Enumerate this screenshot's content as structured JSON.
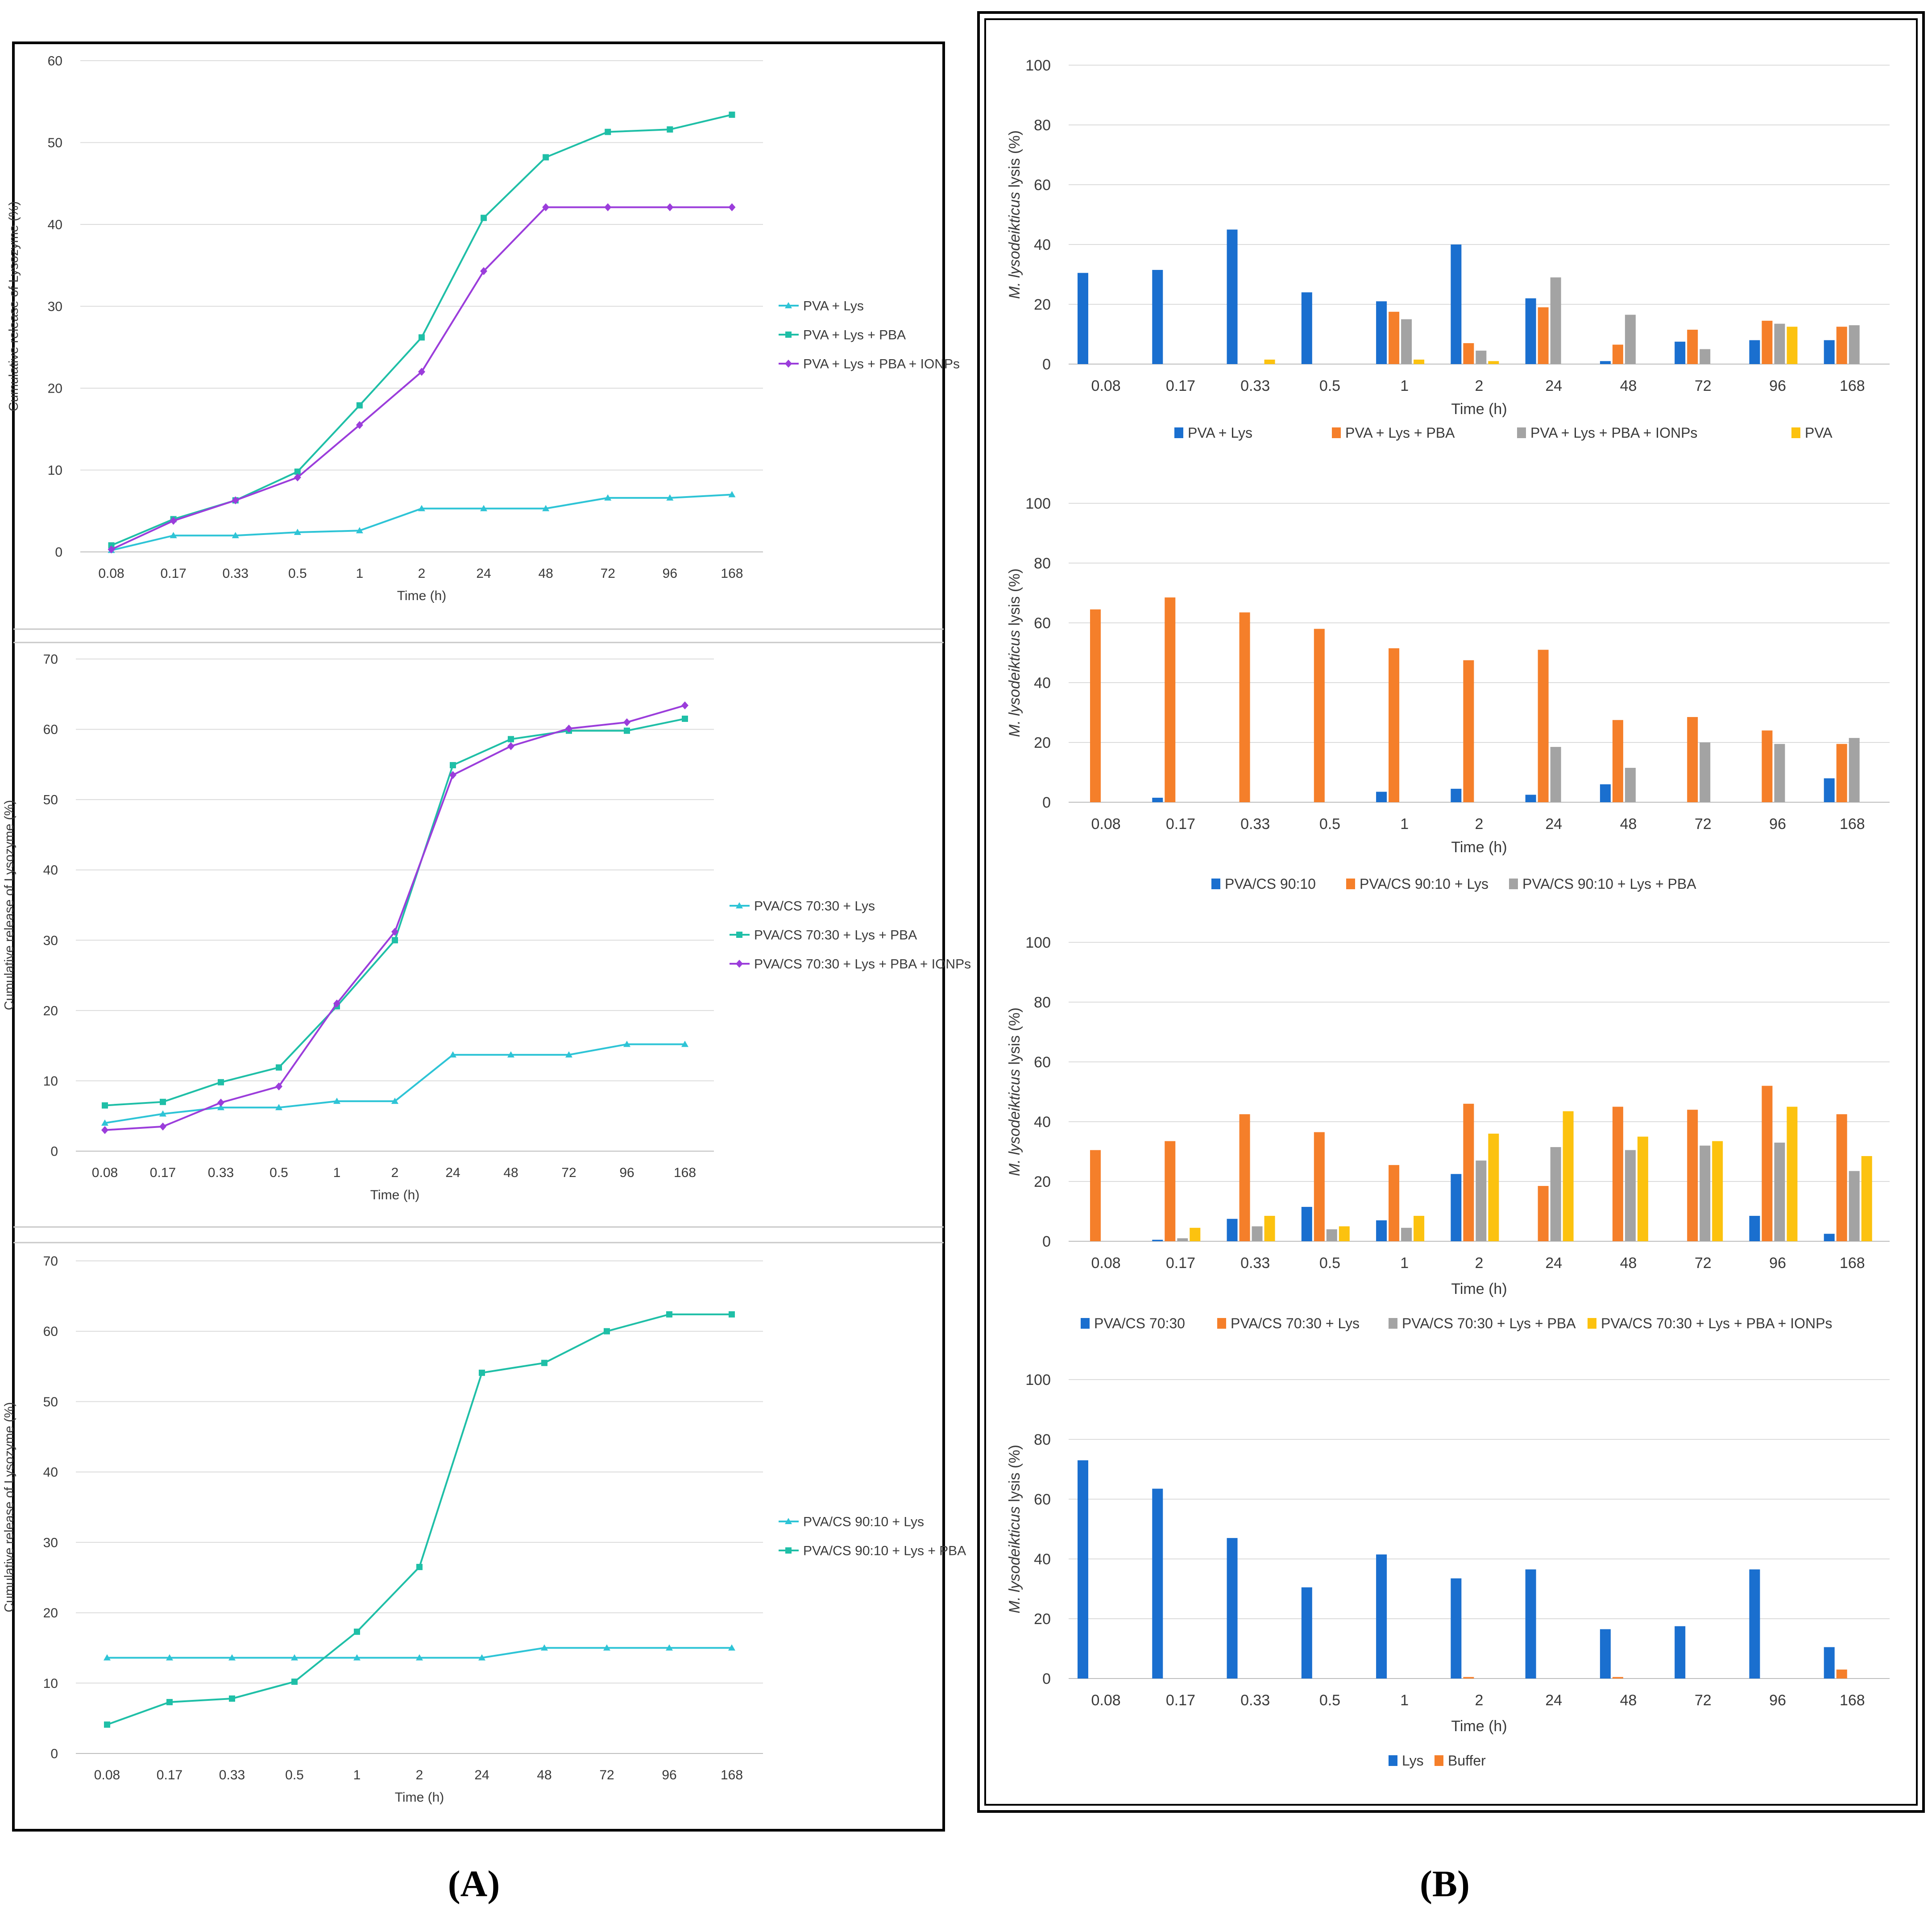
{
  "panels": [
    {
      "label": "(A)",
      "letter": "A"
    },
    {
      "label": "(B)",
      "letter": "B"
    }
  ],
  "colors": {
    "cyan": "#2ec4d6",
    "teal": "#1fbfa7",
    "purple": "#9b3ddb",
    "blue": "#1a6fcf",
    "orange": "#f57f2a",
    "gray": "#a3a3a3",
    "yellow": "#fcc20f"
  },
  "chart_data": [
    {
      "type": "line",
      "panel": "A",
      "ylabel": "Cumulative release of Lysozyme (%)",
      "xlabel": "Time (h)",
      "categories": [
        "0.08",
        "0.17",
        "0.33",
        "0.5",
        "1",
        "2",
        "24",
        "48",
        "72",
        "96",
        "168"
      ],
      "ylim": [
        0,
        60
      ],
      "yticks": [
        0,
        10,
        20,
        30,
        40,
        50,
        60
      ],
      "grid": true,
      "legend_placement": "right",
      "series": [
        {
          "name": "PVA + Lys",
          "color": "#2ec4d6",
          "marker": "triangle",
          "values": [
            0.2,
            2,
            2,
            2.4,
            2.6,
            5.3,
            5.3,
            5.3,
            6.6,
            6.6,
            7
          ]
        },
        {
          "name": "PVA + Lys + PBA",
          "color": "#1fbfa7",
          "marker": "square",
          "values": [
            0.8,
            4,
            6.3,
            9.8,
            17.9,
            26.2,
            40.8,
            48.2,
            51.3,
            51.6,
            53.4
          ]
        },
        {
          "name": "PVA + Lys + PBA + IONPs",
          "color": "#9b3ddb",
          "marker": "diamond",
          "values": [
            0.3,
            3.8,
            6.3,
            9.1,
            15.5,
            22,
            34.3,
            42.1,
            42.1,
            42.1,
            42.1
          ]
        }
      ]
    },
    {
      "type": "line",
      "panel": "A",
      "ylabel": "Cumulative release of Lysozyme (%)",
      "xlabel": "Time (h)",
      "categories": [
        "0.08",
        "0.17",
        "0.33",
        "0.5",
        "1",
        "2",
        "24",
        "48",
        "72",
        "96",
        "168"
      ],
      "ylim": [
        0,
        70
      ],
      "yticks": [
        0,
        10,
        20,
        30,
        40,
        50,
        60,
        70
      ],
      "grid": true,
      "legend_placement": "right",
      "series": [
        {
          "name": "PVA/CS 70:30 + Lys",
          "color": "#2ec4d6",
          "marker": "triangle",
          "values": [
            4,
            5.3,
            6.2,
            6.2,
            7.1,
            7.1,
            13.7,
            13.7,
            13.7,
            15.2,
            15.2
          ]
        },
        {
          "name": "PVA/CS 70:30 + Lys + PBA",
          "color": "#1fbfa7",
          "marker": "square",
          "values": [
            6.5,
            7,
            9.8,
            11.9,
            20.6,
            30,
            54.9,
            58.6,
            59.8,
            59.8,
            61.5
          ]
        },
        {
          "name": "PVA/CS 70:30 + Lys + PBA + IONPs",
          "color": "#9b3ddb",
          "marker": "diamond",
          "values": [
            3,
            3.5,
            6.9,
            9.2,
            21,
            31.2,
            53.5,
            57.6,
            60.1,
            61,
            63.4
          ]
        }
      ]
    },
    {
      "type": "line",
      "panel": "A",
      "ylabel": "Cumulative release of Lysozyme (%)",
      "xlabel": "Time (h)",
      "categories": [
        "0.08",
        "0.17",
        "0.33",
        "0.5",
        "1",
        "2",
        "24",
        "48",
        "72",
        "96",
        "168"
      ],
      "ylim": [
        0,
        70
      ],
      "yticks": [
        0,
        10,
        20,
        30,
        40,
        50,
        60,
        70
      ],
      "grid": true,
      "legend_placement": "right",
      "series": [
        {
          "name": "PVA/CS 90:10 + Lys",
          "color": "#2ec4d6",
          "marker": "triangle",
          "values": [
            13.6,
            13.6,
            13.6,
            13.6,
            13.6,
            13.6,
            13.6,
            15,
            15,
            15,
            15
          ]
        },
        {
          "name": "PVA/CS 90:10 + Lys + PBA",
          "color": "#1fbfa7",
          "marker": "square",
          "values": [
            4.1,
            7.3,
            7.8,
            10.2,
            17.3,
            26.5,
            54.1,
            55.5,
            60,
            62.4,
            62.4
          ]
        }
      ]
    },
    {
      "type": "bar",
      "panel": "B",
      "ylabel_italic": "M. lysodeikticus",
      "ylabel_rest": " lysis (%)",
      "xlabel": "Time (h)",
      "categories": [
        "0.08",
        "0.17",
        "0.33",
        "0.5",
        "1",
        "2",
        "24",
        "48",
        "72",
        "96",
        "168"
      ],
      "ylim": [
        0,
        100
      ],
      "yticks": [
        0,
        20,
        40,
        60,
        80,
        100
      ],
      "grid": true,
      "legend_placement": "bottom",
      "series": [
        {
          "name": "PVA + Lys",
          "color": "#1a6fcf",
          "values": [
            30.5,
            31.5,
            45,
            24,
            21,
            40,
            22,
            1,
            7.5,
            8,
            8
          ]
        },
        {
          "name": "PVA + Lys + PBA",
          "color": "#f57f2a",
          "values": [
            0,
            0,
            0,
            0,
            17.5,
            7,
            19,
            6.5,
            11.5,
            14.5,
            12.5
          ]
        },
        {
          "name": "PVA + Lys + PBA + IONPs",
          "color": "#a3a3a3",
          "values": [
            0,
            0,
            0,
            0,
            15,
            4.5,
            29,
            16.5,
            5,
            13.5,
            13
          ]
        },
        {
          "name": "PVA",
          "color": "#fcc20f",
          "values": [
            0,
            0,
            1.5,
            0,
            1.5,
            1,
            0,
            0,
            0,
            12.5,
            0
          ]
        }
      ]
    },
    {
      "type": "bar",
      "panel": "B",
      "ylabel_italic": "M. lysodeikticus",
      "ylabel_rest": " lysis (%)",
      "xlabel": "Time (h)",
      "categories": [
        "0.08",
        "0.17",
        "0.33",
        "0.5",
        "1",
        "2",
        "24",
        "48",
        "72",
        "96",
        "168"
      ],
      "ylim": [
        0,
        100
      ],
      "yticks": [
        0,
        20,
        40,
        60,
        80,
        100
      ],
      "grid": true,
      "legend_placement": "bottom",
      "series": [
        {
          "name": "PVA/CS 90:10",
          "color": "#1a6fcf",
          "values": [
            0,
            1.5,
            0,
            0,
            3.5,
            4.5,
            2.5,
            6,
            0,
            0,
            8
          ]
        },
        {
          "name": "PVA/CS 90:10 + Lys",
          "color": "#f57f2a",
          "values": [
            64.5,
            68.5,
            63.5,
            58,
            51.5,
            47.5,
            51,
            27.5,
            28.5,
            24,
            19.5
          ]
        },
        {
          "name": "PVA/CS 90:10 + Lys + PBA",
          "color": "#a3a3a3",
          "values": [
            0,
            0,
            0,
            0,
            0,
            0,
            18.5,
            11.5,
            20,
            19.5,
            21.5
          ]
        }
      ]
    },
    {
      "type": "bar",
      "panel": "B",
      "ylabel_italic": "M. lysodeikticus",
      "ylabel_rest": " lysis (%)",
      "xlabel": "Time (h)",
      "categories": [
        "0.08",
        "0.17",
        "0.33",
        "0.5",
        "1",
        "2",
        "24",
        "48",
        "72",
        "96",
        "168"
      ],
      "ylim": [
        0,
        100
      ],
      "yticks": [
        0,
        20,
        40,
        60,
        80,
        100
      ],
      "grid": true,
      "legend_placement": "bottom",
      "series": [
        {
          "name": "PVA/CS 70:30",
          "color": "#1a6fcf",
          "values": [
            0,
            0.5,
            7.5,
            11.5,
            7,
            22.5,
            0,
            0,
            0,
            8.5,
            2.5
          ]
        },
        {
          "name": "PVA/CS 70:30 + Lys",
          "color": "#f57f2a",
          "values": [
            30.5,
            33.5,
            42.5,
            36.5,
            25.5,
            46,
            18.5,
            45,
            44,
            52,
            42.5
          ]
        },
        {
          "name": "PVA/CS 70:30 + Lys + PBA",
          "color": "#a3a3a3",
          "values": [
            0,
            1,
            5,
            4,
            4.5,
            27,
            31.5,
            30.5,
            32,
            33,
            23.5
          ]
        },
        {
          "name": "PVA/CS 70:30 + Lys + PBA + IONPs",
          "color": "#fcc20f",
          "values": [
            0,
            4.5,
            8.5,
            5,
            8.5,
            36,
            43.5,
            35,
            33.5,
            45,
            28.5
          ]
        }
      ]
    },
    {
      "type": "bar",
      "panel": "B",
      "ylabel_italic": "M. lysodeikticus",
      "ylabel_rest": " lysis (%)",
      "xlabel": "Time (h)",
      "categories": [
        "0.08",
        "0.17",
        "0.33",
        "0.5",
        "1",
        "2",
        "24",
        "48",
        "72",
        "96",
        "168"
      ],
      "ylim": [
        0,
        100
      ],
      "yticks": [
        0,
        20,
        40,
        60,
        80,
        100
      ],
      "grid": true,
      "legend_placement": "bottom",
      "series": [
        {
          "name": "Lys",
          "color": "#1a6fcf",
          "values": [
            73,
            63.5,
            47,
            30.5,
            41.5,
            33.5,
            36.5,
            16.5,
            17.5,
            36.5,
            10.5
          ]
        },
        {
          "name": "Buffer",
          "color": "#f57f2a",
          "values": [
            0,
            0,
            0,
            0,
            0,
            0.5,
            0,
            0.5,
            0,
            0,
            3
          ]
        }
      ]
    }
  ]
}
